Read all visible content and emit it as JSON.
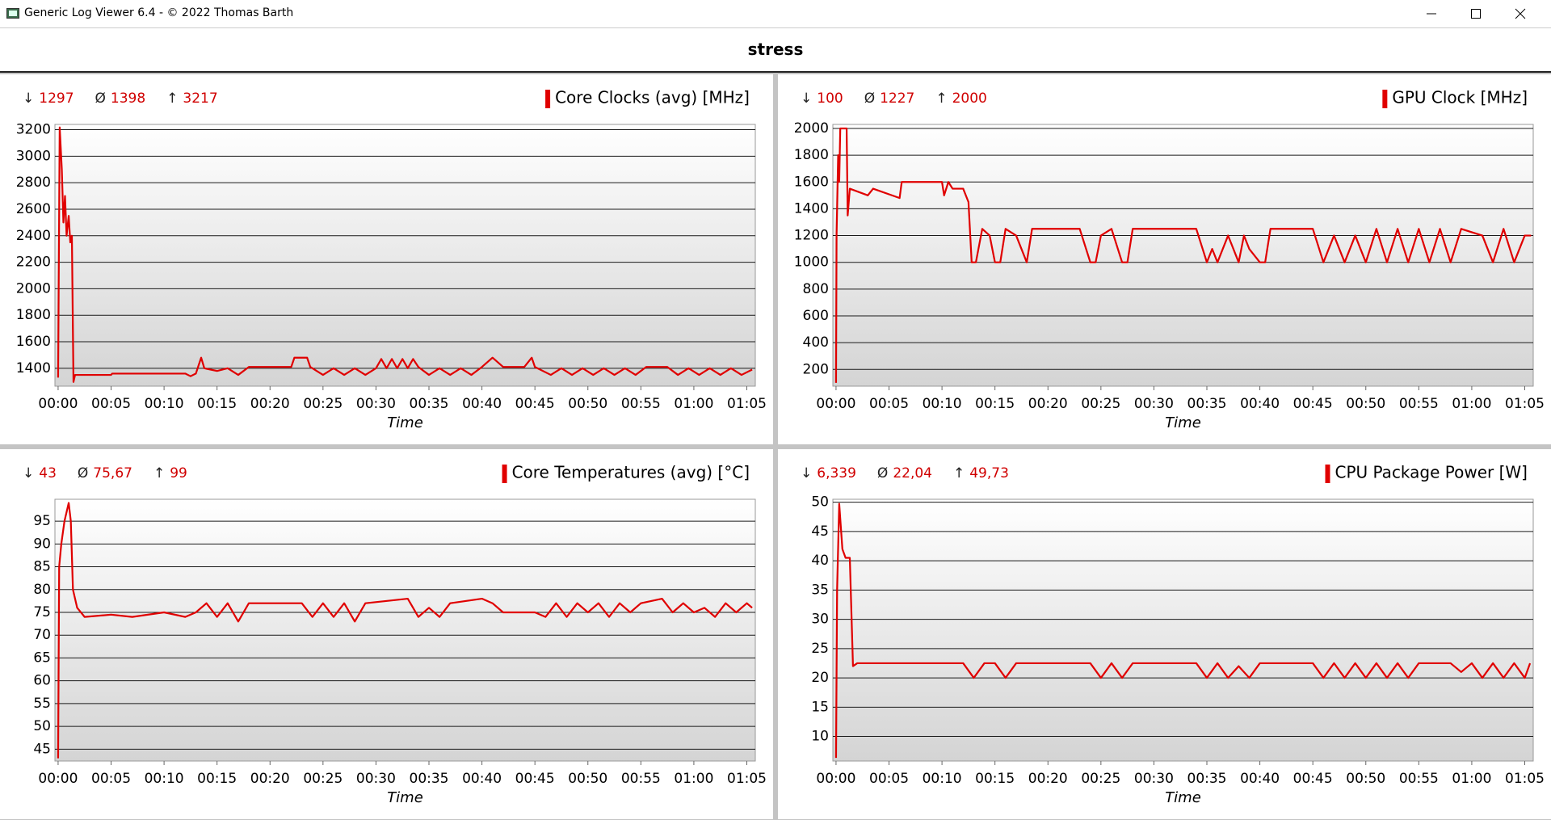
{
  "window": {
    "title": "Generic Log Viewer 6.4 - © 2022 Thomas Barth"
  },
  "header": {
    "title": "stress"
  },
  "chart_data": [
    {
      "type": "line",
      "xlabel": "Time",
      "grid": true,
      "stats": [
        {
          "symbol": "↓",
          "value": 1297
        },
        {
          "symbol": "Ø",
          "value": 1398
        },
        {
          "symbol": "↑",
          "value": 3217
        }
      ],
      "xlim": [
        -0.3,
        65.8
      ],
      "ylim": [
        1265,
        3240
      ],
      "xticks": [
        {
          "value": 0,
          "label": "00:00"
        },
        {
          "value": 5,
          "label": "00:05"
        },
        {
          "value": 10,
          "label": "00:10"
        },
        {
          "value": 15,
          "label": "00:15"
        },
        {
          "value": 20,
          "label": "00:20"
        },
        {
          "value": 25,
          "label": "00:25"
        },
        {
          "value": 30,
          "label": "00:30"
        },
        {
          "value": 35,
          "label": "00:35"
        },
        {
          "value": 40,
          "label": "00:40"
        },
        {
          "value": 45,
          "label": "00:45"
        },
        {
          "value": 50,
          "label": "00:50"
        },
        {
          "value": 55,
          "label": "00:55"
        },
        {
          "value": 60,
          "label": "01:00"
        },
        {
          "value": 65,
          "label": "01:05"
        }
      ],
      "yticks": [
        1400,
        1600,
        1800,
        2000,
        2200,
        2400,
        2600,
        2800,
        3000,
        3200
      ],
      "x": [
        0,
        0.15,
        0.35,
        0.5,
        0.65,
        0.8,
        1.0,
        1.15,
        1.3,
        1.45,
        1.6,
        5,
        5.1,
        12,
        12.5,
        13,
        13.5,
        13.8,
        15,
        16,
        17,
        18,
        22,
        22.3,
        23.5,
        23.8,
        25,
        26,
        27,
        28,
        29,
        30,
        30.5,
        31,
        31.5,
        32,
        32.5,
        33,
        33.5,
        34,
        35,
        36,
        37,
        38,
        39,
        40,
        41,
        42,
        44,
        44.7,
        45,
        46.5,
        47.5,
        48.5,
        49.5,
        50.5,
        51.5,
        52.5,
        53.5,
        54.5,
        55.5,
        57.5,
        58.5,
        59.5,
        60.5,
        61.5,
        62.5,
        63.5,
        64.5,
        65.5
      ],
      "series": [
        {
          "name": "Core Clocks (avg) [MHz]",
          "color": "#e00000",
          "values": [
            1330,
            3217,
            2900,
            2500,
            2700,
            2400,
            2550,
            2350,
            2400,
            1297,
            1350,
            1350,
            1360,
            1360,
            1340,
            1360,
            1480,
            1400,
            1380,
            1400,
            1350,
            1410,
            1410,
            1480,
            1480,
            1410,
            1350,
            1400,
            1350,
            1400,
            1350,
            1400,
            1470,
            1400,
            1470,
            1400,
            1470,
            1400,
            1470,
            1410,
            1350,
            1400,
            1350,
            1400,
            1350,
            1410,
            1480,
            1410,
            1410,
            1480,
            1410,
            1350,
            1400,
            1350,
            1400,
            1350,
            1400,
            1350,
            1400,
            1350,
            1410,
            1410,
            1350,
            1400,
            1350,
            1400,
            1350,
            1400,
            1350,
            1390
          ]
        }
      ]
    },
    {
      "type": "line",
      "xlabel": "Time",
      "grid": true,
      "stats": [
        {
          "symbol": "↓",
          "value": 100
        },
        {
          "symbol": "Ø",
          "value": 1227
        },
        {
          "symbol": "↑",
          "value": 2000
        }
      ],
      "xlim": [
        -0.3,
        65.8
      ],
      "ylim": [
        75,
        2030
      ],
      "xticks": [
        {
          "value": 0,
          "label": "00:00"
        },
        {
          "value": 5,
          "label": "00:05"
        },
        {
          "value": 10,
          "label": "00:10"
        },
        {
          "value": 15,
          "label": "00:15"
        },
        {
          "value": 20,
          "label": "00:20"
        },
        {
          "value": 25,
          "label": "00:25"
        },
        {
          "value": 30,
          "label": "00:30"
        },
        {
          "value": 35,
          "label": "00:35"
        },
        {
          "value": 40,
          "label": "00:40"
        },
        {
          "value": 45,
          "label": "00:45"
        },
        {
          "value": 50,
          "label": "00:50"
        },
        {
          "value": 55,
          "label": "00:55"
        },
        {
          "value": 60,
          "label": "01:00"
        },
        {
          "value": 65,
          "label": "01:05"
        }
      ],
      "yticks": [
        200,
        400,
        600,
        800,
        1000,
        1200,
        1400,
        1600,
        1800,
        2000
      ],
      "x": [
        0,
        0.05,
        0.2,
        0.3,
        0.4,
        1.0,
        1.1,
        1.3,
        3,
        3.5,
        6,
        6.2,
        10,
        10.2,
        10.6,
        11,
        12,
        12.5,
        12.8,
        13.2,
        13.8,
        14.5,
        15,
        15.5,
        16,
        17,
        18,
        18.5,
        23,
        24,
        24.5,
        25,
        26,
        27,
        27.5,
        28,
        34,
        35,
        35.5,
        36,
        37,
        38,
        38.5,
        39,
        40,
        40.5,
        41,
        45,
        46,
        47,
        48,
        49,
        50,
        51,
        52,
        53,
        54,
        55,
        56,
        57,
        58,
        59,
        61,
        62,
        63,
        64,
        65,
        65.6
      ],
      "series": [
        {
          "name": "GPU Clock [MHz]",
          "color": "#e00000",
          "values": [
            100,
            1200,
            1800,
            1600,
            2000,
            2000,
            1350,
            1550,
            1500,
            1550,
            1480,
            1600,
            1600,
            1500,
            1600,
            1550,
            1550,
            1450,
            1000,
            1000,
            1250,
            1200,
            1000,
            1000,
            1250,
            1200,
            1000,
            1250,
            1250,
            1000,
            1000,
            1200,
            1250,
            1000,
            1000,
            1250,
            1250,
            1000,
            1100,
            1000,
            1200,
            1000,
            1200,
            1100,
            1000,
            1000,
            1250,
            1250,
            1000,
            1200,
            1000,
            1200,
            1000,
            1250,
            1000,
            1250,
            1000,
            1250,
            1000,
            1250,
            1000,
            1250,
            1200,
            1000,
            1250,
            1000,
            1200,
            1200
          ]
        }
      ]
    },
    {
      "type": "line",
      "xlabel": "Time",
      "grid": true,
      "stats": [
        {
          "symbol": "↓",
          "value": 43
        },
        {
          "symbol": "Ø",
          "value": 75.67,
          "label": "75,67"
        },
        {
          "symbol": "↑",
          "value": 99
        }
      ],
      "xlim": [
        -0.3,
        65.8
      ],
      "ylim": [
        42.4,
        99.8
      ],
      "xticks": [
        {
          "value": 0,
          "label": "00:00"
        },
        {
          "value": 5,
          "label": "00:05"
        },
        {
          "value": 10,
          "label": "00:10"
        },
        {
          "value": 15,
          "label": "00:15"
        },
        {
          "value": 20,
          "label": "00:20"
        },
        {
          "value": 25,
          "label": "00:25"
        },
        {
          "value": 30,
          "label": "00:30"
        },
        {
          "value": 35,
          "label": "00:35"
        },
        {
          "value": 40,
          "label": "00:40"
        },
        {
          "value": 45,
          "label": "00:45"
        },
        {
          "value": 50,
          "label": "00:50"
        },
        {
          "value": 55,
          "label": "00:55"
        },
        {
          "value": 60,
          "label": "01:00"
        },
        {
          "value": 65,
          "label": "01:05"
        }
      ],
      "yticks": [
        45,
        50,
        55,
        60,
        65,
        70,
        75,
        80,
        85,
        90,
        95
      ],
      "x": [
        0,
        0.1,
        0.3,
        0.6,
        1.0,
        1.2,
        1.4,
        1.8,
        2.5,
        5,
        7,
        10,
        12,
        13,
        14,
        15,
        16,
        17,
        18,
        23,
        24,
        25,
        26,
        27,
        28,
        29,
        33,
        34,
        35,
        36,
        37,
        40,
        41,
        42,
        45,
        46,
        47,
        48,
        49,
        50,
        51,
        52,
        53,
        54,
        55,
        57,
        58,
        59,
        60,
        61,
        62,
        63,
        64,
        65,
        65.5
      ],
      "series": [
        {
          "name": "Core Temperatures (avg) [°C]",
          "color": "#e00000",
          "values": [
            43,
            85,
            90,
            95,
            99,
            95,
            80,
            76,
            74,
            74.5,
            74,
            75,
            74,
            75,
            77,
            74,
            77,
            73,
            77,
            77,
            74,
            77,
            74,
            77,
            73,
            77,
            78,
            74,
            76,
            74,
            77,
            78,
            77,
            75,
            75,
            74,
            77,
            74,
            77,
            75,
            77,
            74,
            77,
            75,
            77,
            78,
            75,
            77,
            75,
            76,
            74,
            77,
            75,
            77,
            76
          ]
        }
      ]
    },
    {
      "type": "line",
      "xlabel": "Time",
      "grid": true,
      "stats": [
        {
          "symbol": "↓",
          "value": 6.339,
          "label": "6,339"
        },
        {
          "symbol": "Ø",
          "value": 22.04,
          "label": "22,04"
        },
        {
          "symbol": "↑",
          "value": 49.73,
          "label": "49,73"
        }
      ],
      "xlim": [
        -0.3,
        65.8
      ],
      "ylim": [
        5.8,
        50.5
      ],
      "xticks": [
        {
          "value": 0,
          "label": "00:00"
        },
        {
          "value": 5,
          "label": "00:05"
        },
        {
          "value": 10,
          "label": "00:10"
        },
        {
          "value": 15,
          "label": "00:15"
        },
        {
          "value": 20,
          "label": "00:20"
        },
        {
          "value": 25,
          "label": "00:25"
        },
        {
          "value": 30,
          "label": "00:30"
        },
        {
          "value": 35,
          "label": "00:35"
        },
        {
          "value": 40,
          "label": "00:40"
        },
        {
          "value": 45,
          "label": "00:45"
        },
        {
          "value": 50,
          "label": "00:50"
        },
        {
          "value": 55,
          "label": "00:55"
        },
        {
          "value": 60,
          "label": "01:00"
        },
        {
          "value": 65,
          "label": "01:05"
        }
      ],
      "yticks": [
        10,
        15,
        20,
        25,
        30,
        35,
        40,
        45,
        50
      ],
      "x": [
        0,
        0.1,
        0.3,
        0.6,
        0.9,
        1.3,
        1.6,
        2,
        12,
        13,
        14,
        15,
        16,
        17,
        24,
        25,
        26,
        27,
        28,
        34,
        35,
        36,
        37,
        38,
        39,
        40,
        45,
        46,
        47,
        48,
        49,
        50,
        51,
        52,
        53,
        54,
        55,
        58,
        59,
        60,
        61,
        62,
        63,
        64,
        65,
        65.5
      ],
      "series": [
        {
          "name": "CPU Package Power [W]",
          "color": "#e00000",
          "values": [
            6.339,
            35,
            49.73,
            42,
            40.5,
            40.5,
            22,
            22.5,
            22.5,
            20,
            22.5,
            22.5,
            20,
            22.5,
            22.5,
            20,
            22.5,
            20,
            22.5,
            22.5,
            20,
            22.5,
            20,
            22,
            20,
            22.5,
            22.5,
            20,
            22.5,
            20,
            22.5,
            20,
            22.5,
            20,
            22.5,
            20,
            22.5,
            22.5,
            21,
            22.5,
            20,
            22.5,
            20,
            22.5,
            20,
            22.5
          ]
        }
      ]
    }
  ]
}
